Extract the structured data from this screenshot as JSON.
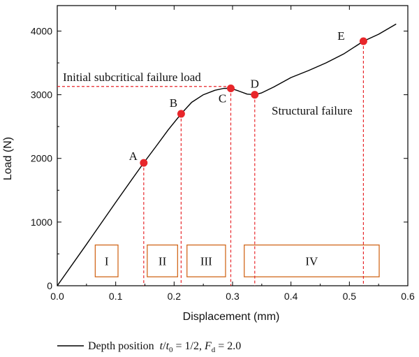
{
  "chart_data": {
    "type": "line",
    "xlabel": "Displacement (mm)",
    "ylabel": "Load (N)",
    "xlim": [
      0.0,
      0.6
    ],
    "ylim": [
      0,
      4400
    ],
    "x_ticks": [
      "0.0",
      "0.1",
      "0.2",
      "0.3",
      "0.4",
      "0.5",
      "0.6"
    ],
    "y_ticks": [
      "0",
      "1000",
      "2000",
      "3000",
      "4000"
    ],
    "grid": false,
    "legend_position": "bottom",
    "colors": {
      "curve": "#000000",
      "points": "#e8262a",
      "guides": "#e8262a",
      "regions": "#d2691e"
    },
    "series": [
      {
        "name": "Depth position",
        "legend_math": "t/t0 = 1/2, Fd = 2.0",
        "x": [
          0.0,
          0.05,
          0.1,
          0.13,
          0.148,
          0.17,
          0.19,
          0.212,
          0.23,
          0.25,
          0.27,
          0.285,
          0.297,
          0.31,
          0.325,
          0.338,
          0.35,
          0.37,
          0.4,
          0.43,
          0.46,
          0.49,
          0.524,
          0.55,
          0.58
        ],
        "y": [
          0,
          650,
          1310,
          1700,
          1930,
          2200,
          2450,
          2700,
          2880,
          3000,
          3070,
          3100,
          3100,
          3060,
          3010,
          3000,
          3030,
          3120,
          3270,
          3380,
          3500,
          3640,
          3840,
          3950,
          4110
        ]
      }
    ],
    "key_points": [
      {
        "label": "A",
        "x": 0.148,
        "y": 1930
      },
      {
        "label": "B",
        "x": 0.212,
        "y": 2700
      },
      {
        "label": "C",
        "x": 0.297,
        "y": 3100
      },
      {
        "label": "D",
        "x": 0.338,
        "y": 3000
      },
      {
        "label": "E",
        "x": 0.524,
        "y": 3840
      }
    ],
    "regions": [
      {
        "label": "I",
        "x_start": 0.065,
        "x_end": 0.104
      },
      {
        "label": "II",
        "x_start": 0.154,
        "x_end": 0.206
      },
      {
        "label": "III",
        "x_start": 0.222,
        "x_end": 0.288
      },
      {
        "label": "IV",
        "x_start": 0.32,
        "x_end": 0.551
      }
    ],
    "regions_y": [
      140,
      640
    ],
    "annotations": {
      "initial_subcritical": "Initial subcritical failure load",
      "initial_subcritical_y": 3130,
      "structural_failure": "Structural failure"
    }
  }
}
